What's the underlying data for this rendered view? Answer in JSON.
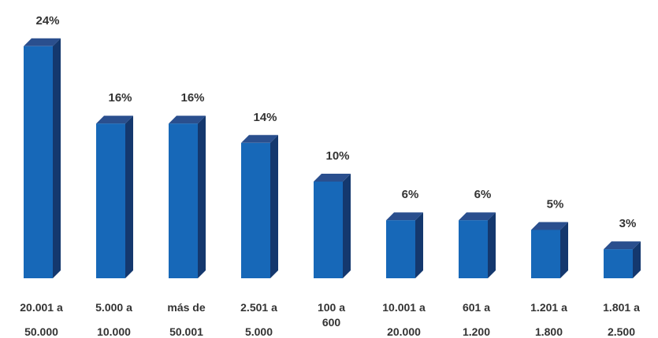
{
  "chart_data": {
    "type": "bar",
    "title": "",
    "xlabel": "",
    "ylabel": "",
    "categories": [
      [
        "20.001 a",
        "50.000"
      ],
      [
        "5.000 a",
        "10.000"
      ],
      [
        "más de",
        "50.001"
      ],
      [
        "2.501 a",
        "5.000"
      ],
      [
        "100 a",
        "600"
      ],
      [
        "10.001 a",
        "20.000"
      ],
      [
        "601 a",
        "1.200"
      ],
      [
        "1.201 a",
        "1.800"
      ],
      [
        "1.801 a",
        "2.500"
      ]
    ],
    "values": [
      24,
      16,
      16,
      14,
      10,
      6,
      6,
      5,
      3
    ],
    "value_labels": [
      "24%",
      "16%",
      "16%",
      "14%",
      "10%",
      "6%",
      "6%",
      "5%",
      "3%"
    ],
    "ylim": [
      0,
      24
    ],
    "grid": false,
    "legend": "none",
    "colors": {
      "front": "#1768b8",
      "side": "#14386e",
      "top": "#2a4f8e",
      "text": "#333333"
    }
  }
}
